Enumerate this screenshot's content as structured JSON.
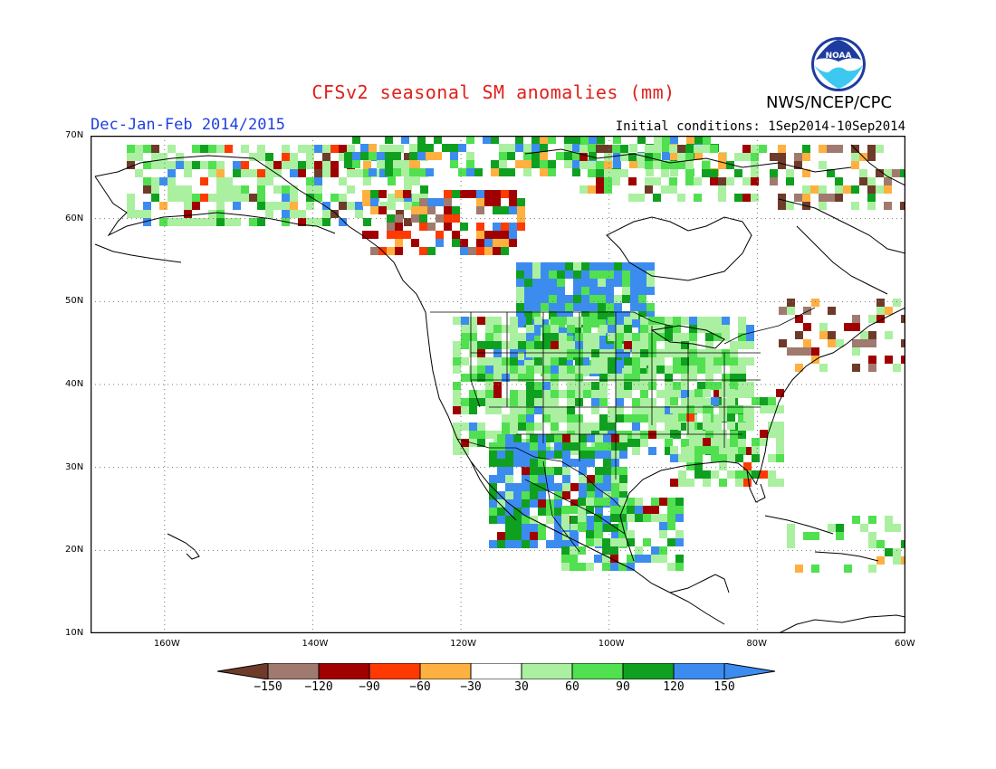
{
  "header": {
    "title": "CFSv2 seasonal SM anomalies (mm)",
    "period": "Dec-Jan-Feb 2014/2015",
    "initial_conditions": "Initial conditions: 1Sep2014-10Sep2014",
    "agency": "NWS/NCEP/CPC",
    "logo_text": "NOAA"
  },
  "map": {
    "extent": {
      "lon": [
        -170,
        -60
      ],
      "lat": [
        10,
        70
      ]
    },
    "lat_labels": [
      "70N",
      "60N",
      "50N",
      "40N",
      "30N",
      "20N",
      "10N"
    ],
    "lon_labels": [
      "160W",
      "140W",
      "120W",
      "100W",
      "80W",
      "60W"
    ],
    "grid": "dotted"
  },
  "legend": {
    "labels": [
      "-150",
      "-120",
      "-90",
      "-60",
      "-30",
      "30",
      "60",
      "90",
      "120",
      "150"
    ],
    "colors": [
      "#6e3b2a",
      "#a07a6e",
      "#a00000",
      "#ff3a00",
      "#ffb040",
      "#ffffff",
      "#aaf0a0",
      "#50e050",
      "#10a020",
      "#3c8cf0",
      "#3c8cf0"
    ]
  }
}
